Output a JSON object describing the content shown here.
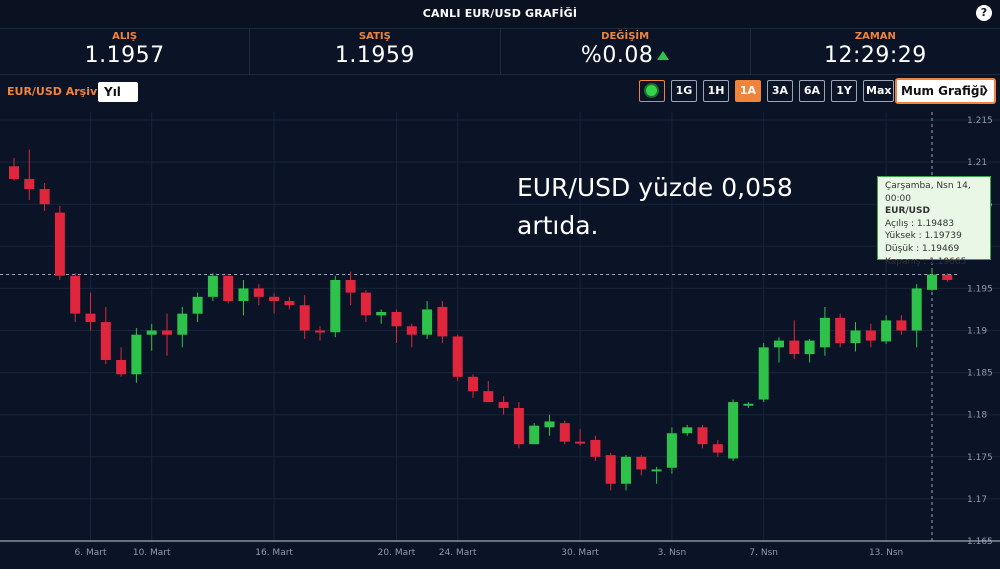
{
  "header": {
    "title": "CANLI EUR/USD GRAFİĞİ",
    "help": "?"
  },
  "quotes": [
    {
      "label": "ALIŞ",
      "value": "1.1957"
    },
    {
      "label": "SATIŞ",
      "value": "1.1959"
    },
    {
      "label": "DEĞİŞİM",
      "value": "%0.08"
    },
    {
      "label": "ZAMAN",
      "value": "12:29:29"
    }
  ],
  "toolbar": {
    "archive_label": "EUR/USD Arşivi",
    "period_select": "Yıl",
    "range_buttons": [
      "1G",
      "1H",
      "1A",
      "3A",
      "6A",
      "1Y",
      "Max"
    ],
    "active_range": "1A",
    "chart_type_select": "Mum Grafiği"
  },
  "colors": {
    "up": "#2ec24a",
    "down": "#e0263c",
    "accent": "#f0843c",
    "background": "#0b1426"
  },
  "annotation": {
    "line1": "EUR/USD yüzde 0,058",
    "line2": "artıda."
  },
  "tooltip": {
    "date": "Çarşamba, Nsn 14, 00:00",
    "name": "EUR/USD",
    "open": "Açılış : 1.19483",
    "high": "Yüksek : 1.19739",
    "low": "Düşük : 1.19469",
    "close": "Kapanış : 1.19665"
  },
  "chart_data": {
    "type": "candlestick",
    "title": "",
    "xlabel": "",
    "ylabel": "",
    "ylim": [
      1.165,
      1.215
    ],
    "yticks": [
      1.215,
      1.21,
      1.205,
      1.2,
      1.195,
      1.19,
      1.185,
      1.18,
      1.175,
      1.17,
      1.165
    ],
    "ytick_labels": [
      "1.215",
      "1.21",
      "1.205",
      "1.2",
      "1.195",
      "1.19",
      "1.185",
      "1.18",
      "1.175",
      "1.17",
      "1.165"
    ],
    "xtick_labels": [
      "6. Mart",
      "10. Mart",
      "16. Mart",
      "20. Mart",
      "24. Mart",
      "30. Mart",
      "3. Nsn",
      "7. Nsn",
      "13. Nsn"
    ],
    "xtick_index": [
      5,
      9,
      17,
      25,
      29,
      37,
      43,
      49,
      57
    ],
    "crosshair_y": 1.19665,
    "grid": true,
    "candles": [
      {
        "o": 1.2095,
        "h": 1.2105,
        "l": 1.2078,
        "c": 1.208
      },
      {
        "o": 1.208,
        "h": 1.2115,
        "l": 1.2055,
        "c": 1.2068
      },
      {
        "o": 1.2068,
        "h": 1.2075,
        "l": 1.2042,
        "c": 1.205
      },
      {
        "o": 1.204,
        "h": 1.2048,
        "l": 1.196,
        "c": 1.1965
      },
      {
        "o": 1.1965,
        "h": 1.1968,
        "l": 1.191,
        "c": 1.192
      },
      {
        "o": 1.192,
        "h": 1.1945,
        "l": 1.19,
        "c": 1.191
      },
      {
        "o": 1.191,
        "h": 1.1928,
        "l": 1.186,
        "c": 1.1865
      },
      {
        "o": 1.1865,
        "h": 1.188,
        "l": 1.1845,
        "c": 1.1848
      },
      {
        "o": 1.1848,
        "h": 1.1903,
        "l": 1.1838,
        "c": 1.1895
      },
      {
        "o": 1.1895,
        "h": 1.1908,
        "l": 1.1876,
        "c": 1.19
      },
      {
        "o": 1.19,
        "h": 1.192,
        "l": 1.187,
        "c": 1.1895
      },
      {
        "o": 1.1895,
        "h": 1.1928,
        "l": 1.188,
        "c": 1.192
      },
      {
        "o": 1.192,
        "h": 1.1945,
        "l": 1.191,
        "c": 1.194
      },
      {
        "o": 1.194,
        "h": 1.1968,
        "l": 1.1935,
        "c": 1.1965
      },
      {
        "o": 1.1965,
        "h": 1.1965,
        "l": 1.1932,
        "c": 1.1935
      },
      {
        "o": 1.1935,
        "h": 1.196,
        "l": 1.1918,
        "c": 1.195
      },
      {
        "o": 1.195,
        "h": 1.1955,
        "l": 1.193,
        "c": 1.194
      },
      {
        "o": 1.194,
        "h": 1.1944,
        "l": 1.192,
        "c": 1.1935
      },
      {
        "o": 1.1935,
        "h": 1.194,
        "l": 1.1925,
        "c": 1.193
      },
      {
        "o": 1.193,
        "h": 1.1942,
        "l": 1.189,
        "c": 1.19
      },
      {
        "o": 1.19,
        "h": 1.1905,
        "l": 1.1888,
        "c": 1.1898
      },
      {
        "o": 1.1898,
        "h": 1.1965,
        "l": 1.1892,
        "c": 1.196
      },
      {
        "o": 1.196,
        "h": 1.197,
        "l": 1.193,
        "c": 1.1945
      },
      {
        "o": 1.1945,
        "h": 1.1948,
        "l": 1.191,
        "c": 1.1918
      },
      {
        "o": 1.1918,
        "h": 1.1925,
        "l": 1.1908,
        "c": 1.1922
      },
      {
        "o": 1.1922,
        "h": 1.1925,
        "l": 1.1885,
        "c": 1.1905
      },
      {
        "o": 1.1905,
        "h": 1.1908,
        "l": 1.188,
        "c": 1.1895
      },
      {
        "o": 1.1895,
        "h": 1.1935,
        "l": 1.189,
        "c": 1.1925
      },
      {
        "o": 1.1928,
        "h": 1.1935,
        "l": 1.1885,
        "c": 1.1893
      },
      {
        "o": 1.1893,
        "h": 1.1895,
        "l": 1.184,
        "c": 1.1845
      },
      {
        "o": 1.1845,
        "h": 1.1848,
        "l": 1.182,
        "c": 1.1828
      },
      {
        "o": 1.1828,
        "h": 1.184,
        "l": 1.1815,
        "c": 1.1815
      },
      {
        "o": 1.1815,
        "h": 1.1822,
        "l": 1.18,
        "c": 1.1808
      },
      {
        "o": 1.1808,
        "h": 1.1815,
        "l": 1.176,
        "c": 1.1765
      },
      {
        "o": 1.1765,
        "h": 1.179,
        "l": 1.1765,
        "c": 1.1787
      },
      {
        "o": 1.1785,
        "h": 1.18,
        "l": 1.1775,
        "c": 1.1792
      },
      {
        "o": 1.179,
        "h": 1.1793,
        "l": 1.1765,
        "c": 1.1768
      },
      {
        "o": 1.1768,
        "h": 1.1783,
        "l": 1.1763,
        "c": 1.1767
      },
      {
        "o": 1.177,
        "h": 1.1775,
        "l": 1.1745,
        "c": 1.175
      },
      {
        "o": 1.1752,
        "h": 1.1755,
        "l": 1.171,
        "c": 1.1718
      },
      {
        "o": 1.1718,
        "h": 1.1752,
        "l": 1.171,
        "c": 1.175
      },
      {
        "o": 1.175,
        "h": 1.1752,
        "l": 1.1728,
        "c": 1.1735
      },
      {
        "o": 1.1735,
        "h": 1.1738,
        "l": 1.1718,
        "c": 1.1735
      },
      {
        "o": 1.1737,
        "h": 1.1785,
        "l": 1.173,
        "c": 1.1778
      },
      {
        "o": 1.1778,
        "h": 1.1788,
        "l": 1.1775,
        "c": 1.1785
      },
      {
        "o": 1.1785,
        "h": 1.1788,
        "l": 1.176,
        "c": 1.1765
      },
      {
        "o": 1.1765,
        "h": 1.177,
        "l": 1.175,
        "c": 1.1755
      },
      {
        "o": 1.1748,
        "h": 1.1818,
        "l": 1.1745,
        "c": 1.1815
      },
      {
        "o": 1.1812,
        "h": 1.1815,
        "l": 1.1808,
        "c": 1.1813
      },
      {
        "o": 1.1818,
        "h": 1.1885,
        "l": 1.1815,
        "c": 1.188
      },
      {
        "o": 1.188,
        "h": 1.1892,
        "l": 1.1862,
        "c": 1.1888
      },
      {
        "o": 1.1888,
        "h": 1.1912,
        "l": 1.1866,
        "c": 1.1872
      },
      {
        "o": 1.1872,
        "h": 1.189,
        "l": 1.1862,
        "c": 1.1888
      },
      {
        "o": 1.188,
        "h": 1.1928,
        "l": 1.187,
        "c": 1.1915
      },
      {
        "o": 1.1915,
        "h": 1.192,
        "l": 1.188,
        "c": 1.1885
      },
      {
        "o": 1.1885,
        "h": 1.191,
        "l": 1.1875,
        "c": 1.19
      },
      {
        "o": 1.19,
        "h": 1.1908,
        "l": 1.188,
        "c": 1.1888
      },
      {
        "o": 1.1887,
        "h": 1.1918,
        "l": 1.1884,
        "c": 1.1912
      },
      {
        "o": 1.1912,
        "h": 1.1918,
        "l": 1.1895,
        "c": 1.19
      },
      {
        "o": 1.19,
        "h": 1.1955,
        "l": 1.188,
        "c": 1.195
      },
      {
        "o": 1.19483,
        "h": 1.19739,
        "l": 1.19469,
        "c": 1.19665
      },
      {
        "o": 1.1966,
        "h": 1.1968,
        "l": 1.1958,
        "c": 1.196
      }
    ]
  }
}
